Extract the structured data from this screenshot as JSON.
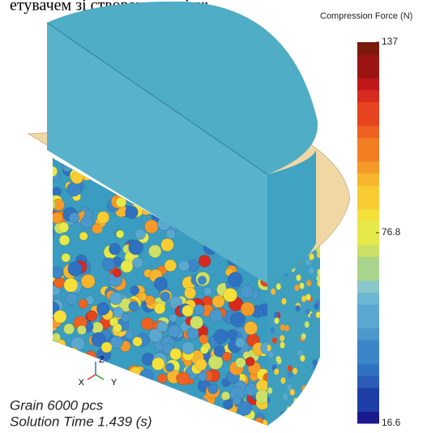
{
  "header": {
    "text": "етувачем зі створеного звіту:"
  },
  "colorbar": {
    "title": "Compression Force (N)",
    "ticks": [
      137,
      76.8,
      16.6
    ]
  },
  "triad": {
    "z": "Z",
    "x": "X",
    "y": "Y"
  },
  "info": {
    "grain": "Grain 6000 pcs",
    "time": "Solution Time 1.439 (s)"
  }
}
